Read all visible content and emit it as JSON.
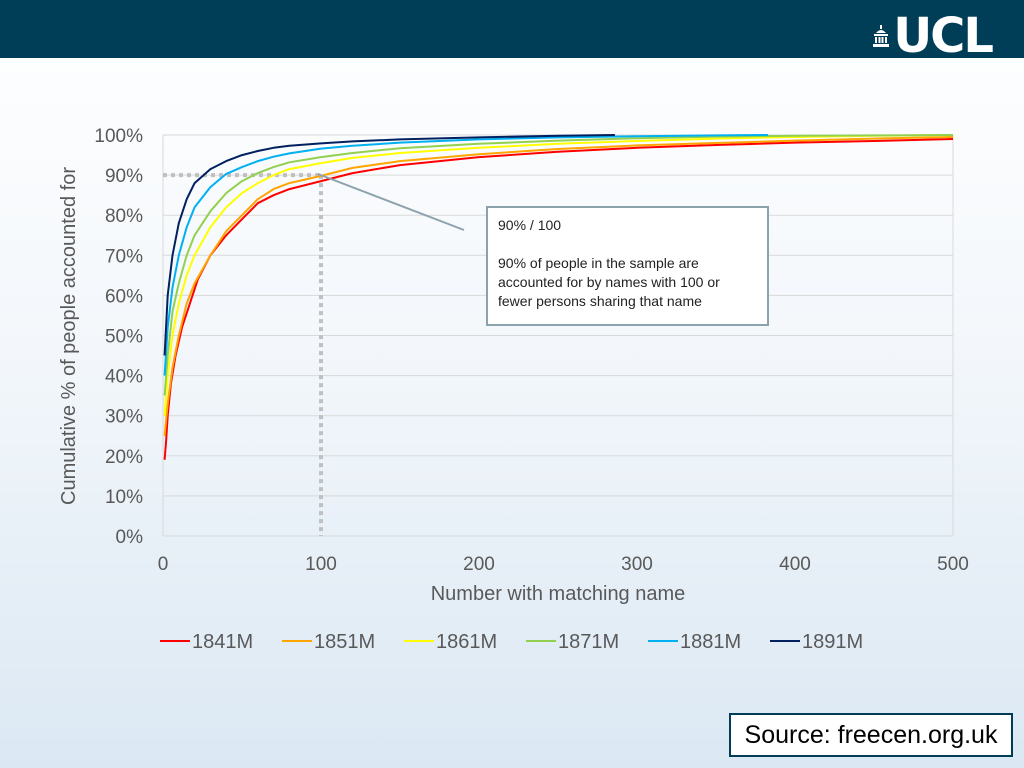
{
  "header": {
    "logo_text": "UCL",
    "bar_color": "#003d56"
  },
  "annotation": {
    "title": "90% / 100",
    "body": "90% of people in the sample are accounted for by names with 100 or fewer persons sharing that name",
    "marker": {
      "x": 100,
      "y": 90
    }
  },
  "source": {
    "label": "Source: freecen.org.uk"
  },
  "chart_data": {
    "type": "line",
    "title": "",
    "xlabel": "Number with matching name",
    "ylabel": "Cumulative % of people accounted for",
    "xlim": [
      0,
      500
    ],
    "ylim": [
      0,
      100
    ],
    "x_ticks": [
      0,
      100,
      200,
      300,
      400,
      500
    ],
    "y_ticks": [
      0,
      10,
      20,
      30,
      40,
      50,
      60,
      70,
      80,
      90,
      100
    ],
    "x_tick_labels": [
      "0",
      "100",
      "200",
      "300",
      "400",
      "500"
    ],
    "y_tick_labels": [
      "0%",
      "10%",
      "20%",
      "30%",
      "40%",
      "50%",
      "60%",
      "70%",
      "80%",
      "90%",
      "100%"
    ],
    "grid": "horizontal",
    "legend_position": "bottom",
    "series": [
      {
        "name": "1841M",
        "color": "#ff0000",
        "points": [
          [
            1,
            19
          ],
          [
            2,
            24
          ],
          [
            3,
            30
          ],
          [
            5,
            38
          ],
          [
            8,
            45
          ],
          [
            12,
            52
          ],
          [
            17,
            58
          ],
          [
            22,
            64
          ],
          [
            30,
            70
          ],
          [
            40,
            75
          ],
          [
            50,
            79
          ],
          [
            60,
            83
          ],
          [
            70,
            85
          ],
          [
            80,
            86.5
          ],
          [
            90,
            87.5
          ],
          [
            100,
            88.5
          ],
          [
            120,
            90.5
          ],
          [
            150,
            92.5
          ],
          [
            200,
            94.5
          ],
          [
            250,
            95.8
          ],
          [
            300,
            96.8
          ],
          [
            350,
            97.5
          ],
          [
            400,
            98.1
          ],
          [
            450,
            98.5
          ],
          [
            500,
            99
          ]
        ]
      },
      {
        "name": "1851M",
        "color": "#ffa500",
        "points": [
          [
            1,
            25
          ],
          [
            3,
            33
          ],
          [
            6,
            42
          ],
          [
            10,
            50
          ],
          [
            15,
            58
          ],
          [
            20,
            63
          ],
          [
            30,
            70
          ],
          [
            40,
            76
          ],
          [
            50,
            80
          ],
          [
            60,
            84
          ],
          [
            70,
            86.5
          ],
          [
            80,
            88
          ],
          [
            100,
            89.8
          ],
          [
            120,
            91.8
          ],
          [
            150,
            93.5
          ],
          [
            200,
            95.2
          ],
          [
            250,
            96.5
          ],
          [
            300,
            97.4
          ],
          [
            350,
            98
          ],
          [
            400,
            98.6
          ],
          [
            450,
            99.1
          ],
          [
            500,
            99.5
          ]
        ]
      },
      {
        "name": "1861M",
        "color": "#ffff00",
        "points": [
          [
            1,
            30
          ],
          [
            3,
            40
          ],
          [
            6,
            50
          ],
          [
            10,
            58
          ],
          [
            15,
            65
          ],
          [
            20,
            70
          ],
          [
            30,
            77
          ],
          [
            40,
            82
          ],
          [
            50,
            85.5
          ],
          [
            60,
            88
          ],
          [
            70,
            90
          ],
          [
            80,
            91.5
          ],
          [
            100,
            93
          ],
          [
            120,
            94.3
          ],
          [
            150,
            95.5
          ],
          [
            200,
            96.8
          ],
          [
            250,
            97.8
          ],
          [
            300,
            98.5
          ],
          [
            350,
            99.1
          ],
          [
            400,
            99.5
          ],
          [
            450,
            99.8
          ],
          [
            500,
            100
          ]
        ]
      },
      {
        "name": "1871M",
        "color": "#92d050",
        "points": [
          [
            1,
            35
          ],
          [
            3,
            45
          ],
          [
            6,
            56
          ],
          [
            10,
            63
          ],
          [
            15,
            70
          ],
          [
            20,
            75
          ],
          [
            30,
            81
          ],
          [
            40,
            85.5
          ],
          [
            50,
            88.5
          ],
          [
            60,
            90.5
          ],
          [
            70,
            92
          ],
          [
            80,
            93.2
          ],
          [
            100,
            94.5
          ],
          [
            120,
            95.5
          ],
          [
            150,
            96.7
          ],
          [
            200,
            97.8
          ],
          [
            250,
            98.6
          ],
          [
            300,
            99.2
          ],
          [
            350,
            99.6
          ],
          [
            400,
            99.8
          ],
          [
            450,
            99.9
          ],
          [
            500,
            100
          ]
        ]
      },
      {
        "name": "1881M",
        "color": "#00b0f0",
        "points": [
          [
            1,
            40
          ],
          [
            3,
            52
          ],
          [
            6,
            62
          ],
          [
            10,
            70
          ],
          [
            15,
            77
          ],
          [
            20,
            82
          ],
          [
            30,
            87
          ],
          [
            40,
            90.3
          ],
          [
            50,
            92
          ],
          [
            60,
            93.5
          ],
          [
            70,
            94.6
          ],
          [
            80,
            95.4
          ],
          [
            100,
            96.6
          ],
          [
            120,
            97.3
          ],
          [
            150,
            98.1
          ],
          [
            200,
            98.9
          ],
          [
            250,
            99.4
          ],
          [
            300,
            99.7
          ],
          [
            350,
            99.9
          ],
          [
            383,
            100
          ]
        ]
      },
      {
        "name": "1891M",
        "color": "#002060",
        "points": [
          [
            1,
            45
          ],
          [
            3,
            60
          ],
          [
            6,
            70
          ],
          [
            10,
            78
          ],
          [
            15,
            84
          ],
          [
            20,
            88
          ],
          [
            30,
            91.5
          ],
          [
            40,
            93.5
          ],
          [
            50,
            95
          ],
          [
            60,
            96
          ],
          [
            70,
            96.8
          ],
          [
            80,
            97.3
          ],
          [
            100,
            97.9
          ],
          [
            120,
            98.4
          ],
          [
            150,
            98.9
          ],
          [
            200,
            99.4
          ],
          [
            250,
            99.8
          ],
          [
            286,
            100
          ]
        ]
      }
    ]
  }
}
